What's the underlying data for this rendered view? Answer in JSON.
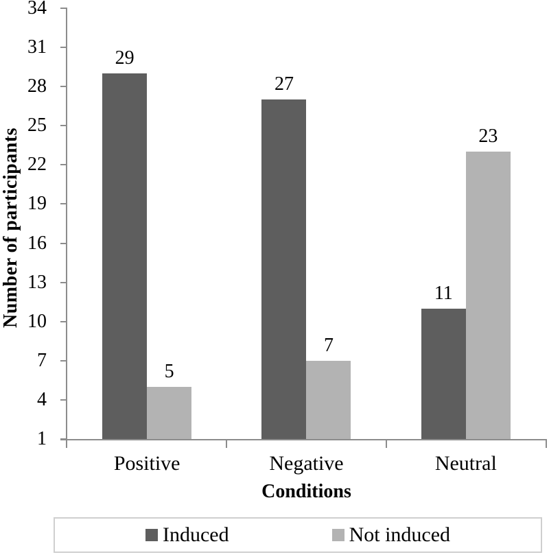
{
  "chart_data": {
    "type": "bar",
    "title": "",
    "xlabel": "Conditions",
    "ylabel": "Number of participants",
    "categories": [
      "Positive",
      "Negative",
      "Neutral"
    ],
    "series": [
      {
        "name": "Induced",
        "color": "#5e5e5e",
        "values": [
          29,
          27,
          11
        ]
      },
      {
        "name": "Not induced",
        "color": "#b3b3b3",
        "values": [
          5,
          7,
          23
        ]
      }
    ],
    "y_axis": {
      "min": 1,
      "max": 34,
      "tick_step": 3,
      "ticks": [
        1,
        4,
        7,
        10,
        13,
        16,
        19,
        22,
        25,
        28,
        31,
        34
      ]
    },
    "data_labels": true,
    "grid": false,
    "legend": {
      "position": "bottom",
      "entries": [
        "Induced",
        "Not induced"
      ]
    },
    "axis_color": "#8c8c8c"
  }
}
